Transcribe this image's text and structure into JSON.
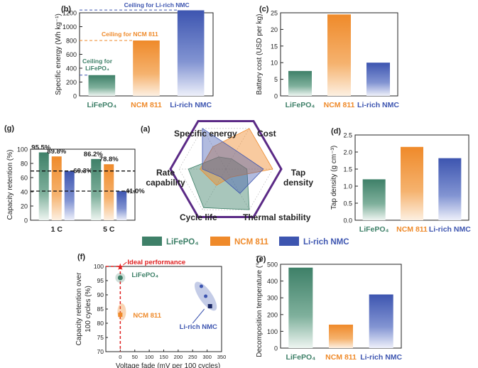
{
  "colors": {
    "lfp": "#3e8068",
    "ncm": "#ef8a2a",
    "lrich": "#3d55b0",
    "red": "#e02020",
    "axis": "#222222"
  },
  "legend": {
    "items": [
      {
        "label": "LiFePO₄",
        "color": "#3e8068"
      },
      {
        "label": "NCM 811",
        "color": "#ef8a2a"
      },
      {
        "label": "Li-rich NMC",
        "color": "#3d55b0"
      }
    ]
  },
  "chart_data": [
    {
      "id": "b",
      "type": "bar",
      "panel_label": "(b)",
      "categories": [
        "LiFePO₄",
        "NCM 811",
        "Li-rich NMC"
      ],
      "values": [
        300,
        800,
        1240
      ],
      "ylabel": "Specific energy (Wh kg⁻¹)",
      "ylim": [
        0,
        1200
      ],
      "yticks": [
        0,
        200,
        400,
        600,
        800,
        1000,
        1200
      ],
      "annotations": [
        {
          "text": "Ceiling for Li-rich NMC",
          "value": 1240
        },
        {
          "text": "Ceiling for NCM 811",
          "value": 800
        },
        {
          "text": "Ceiling for",
          "value": 300
        },
        {
          "text": "LiFePO₄",
          "value": 300
        }
      ]
    },
    {
      "id": "c",
      "type": "bar",
      "panel_label": "(c)",
      "categories": [
        "LiFePO₄",
        "NCM 811",
        "Li-rich NMC"
      ],
      "values": [
        7.5,
        24.5,
        10
      ],
      "ylabel": "Battery cost (USD per kg)",
      "ylim": [
        0,
        25
      ],
      "yticks": [
        0,
        5,
        10,
        15,
        20,
        25
      ]
    },
    {
      "id": "g",
      "type": "bar",
      "panel_label": "(g)",
      "categories": [
        "1 C",
        "5 C"
      ],
      "series": [
        {
          "name": "LiFePO₄",
          "values": [
            95.5,
            86.2
          ],
          "labels": [
            "95.5%",
            "86.2%"
          ]
        },
        {
          "name": "NCM 811",
          "values": [
            89.8,
            78.8
          ],
          "labels": [
            "89.8%",
            "78.8%"
          ]
        },
        {
          "name": "Li-rich NMC",
          "values": [
            69.3,
            41.0
          ],
          "labels": [
            "69.3%",
            "41.0%"
          ]
        }
      ],
      "ylabel": "Capacity retention (%)",
      "ylim": [
        0,
        100
      ],
      "yticks": [
        0,
        20,
        40,
        60,
        80,
        100
      ],
      "reference_lines": [
        69.3,
        41.0
      ]
    },
    {
      "id": "a",
      "type": "radar",
      "panel_label": "(a)",
      "axes": [
        "Specific energy",
        "Cost",
        "Tap density",
        "Thermal stability",
        "Cycle life",
        "Rate capability"
      ],
      "axis_label_lines": [
        [
          "Specific energy"
        ],
        [
          "Cost"
        ],
        [
          "Tap",
          "density"
        ],
        [
          "Thermal stability"
        ],
        [
          "Cycle life"
        ],
        [
          "Rate",
          "capability"
        ]
      ],
      "series": [
        {
          "name": "LiFePO₄",
          "values": [
            0.3,
            0.25,
            0.45,
            1.0,
            0.95,
            0.8
          ]
        },
        {
          "name": "NCM 811",
          "values": [
            0.55,
            1.0,
            1.0,
            0.2,
            0.4,
            0.55
          ]
        },
        {
          "name": "Li-rich NMC",
          "values": [
            1.0,
            0.45,
            0.8,
            0.6,
            0.2,
            0.5
          ]
        }
      ]
    },
    {
      "id": "d",
      "type": "bar",
      "panel_label": "(d)",
      "categories": [
        "LiFePO₄",
        "NCM 811",
        "Li-rich NMC"
      ],
      "values": [
        1.2,
        2.15,
        1.82
      ],
      "ylabel": "Tap density (g cm⁻³)",
      "ylim": [
        0,
        2.5
      ],
      "yticks": [
        0.0,
        0.5,
        1.0,
        1.5,
        2.0,
        2.5
      ]
    },
    {
      "id": "f",
      "type": "scatter",
      "panel_label": "(f)",
      "xlabel": "Voltage fade (mV per 100 cycles)",
      "ylabel_lines": [
        "Capacity retention over",
        "100 cycles (%)"
      ],
      "xlim": [
        -50,
        350
      ],
      "ylim": [
        70,
        100
      ],
      "xticks": [
        0,
        50,
        100,
        150,
        200,
        250,
        300,
        350
      ],
      "yticks": [
        70,
        75,
        80,
        85,
        90,
        95,
        100
      ],
      "points": [
        {
          "name": "Ideal performance",
          "x": 0,
          "y": 100,
          "label": "Ideal performance"
        },
        {
          "name": "LiFePO₄",
          "x": 0,
          "y": 96,
          "label": "LiFePO₄"
        },
        {
          "name": "NCM 811",
          "x": 0,
          "y": 83,
          "label": "NCM 811"
        },
        {
          "name": "Li-rich NMC a",
          "x": 280,
          "y": 93
        },
        {
          "name": "Li-rich NMC b",
          "x": 295,
          "y": 89.5
        },
        {
          "name": "Li-rich NMC c",
          "x": 310,
          "y": 86,
          "label": "Li-rich NMC"
        }
      ]
    },
    {
      "id": "e",
      "type": "bar",
      "panel_label": "(e)",
      "categories": [
        "LiFePO₄",
        "NCM 811",
        "Li-rich NMC"
      ],
      "values": [
        480,
        140,
        320
      ],
      "ylabel": "Decomposition temperature (°C)",
      "ylim": [
        0,
        500
      ],
      "yticks": [
        0,
        100,
        200,
        300,
        400,
        500
      ]
    }
  ]
}
